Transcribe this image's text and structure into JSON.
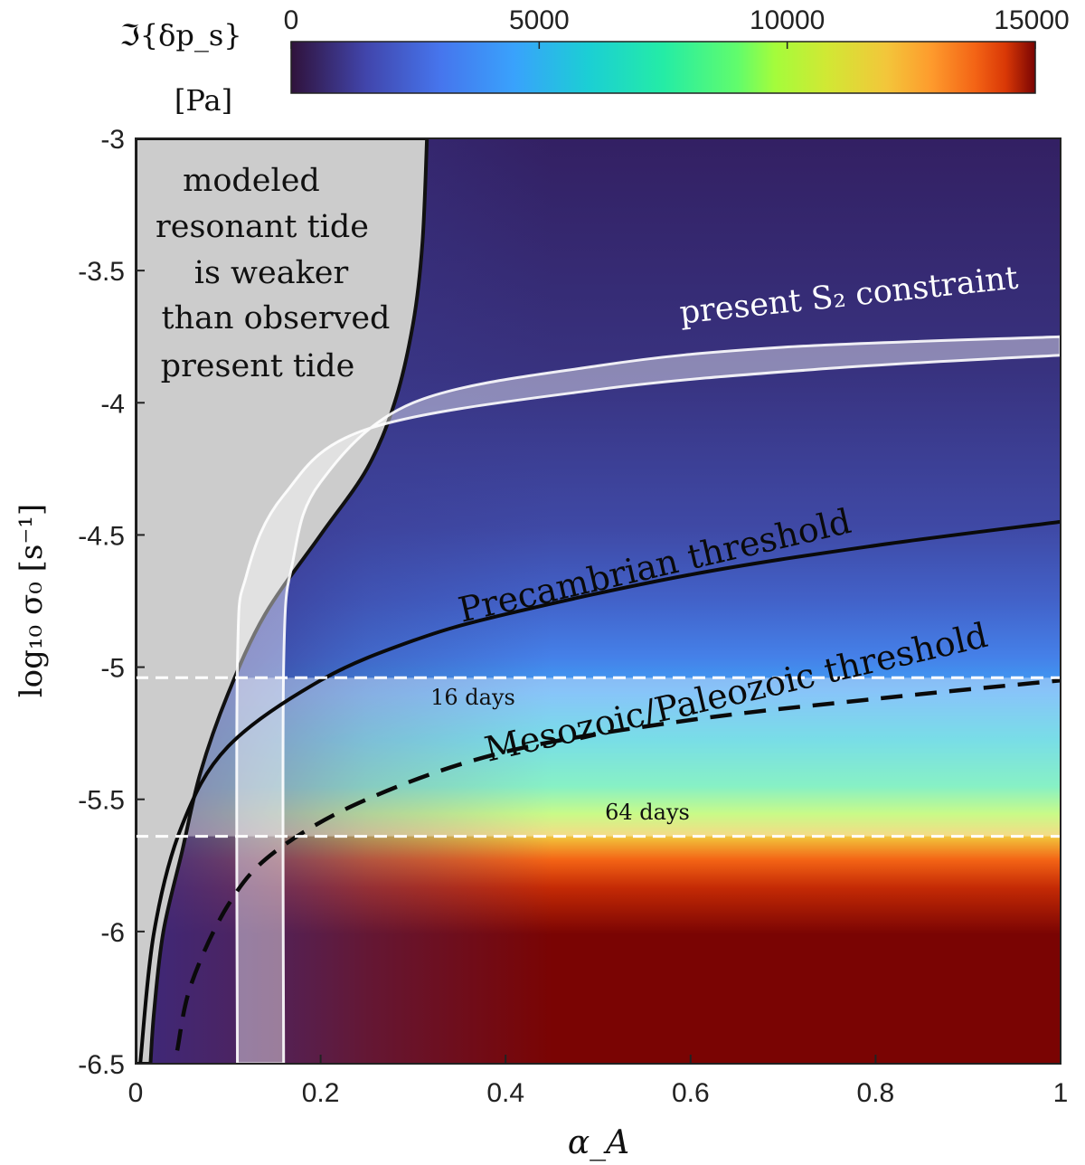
{
  "chart_data": {
    "type": "heatmap",
    "title": "",
    "xlabel": "α_A",
    "ylabel": "log₁₀ σ₀  [s⁻¹]",
    "xlim": [
      0,
      1
    ],
    "ylim": [
      -6.5,
      -3
    ],
    "x_ticks": [
      {
        "value": 0,
        "label": "0"
      },
      {
        "value": 0.2,
        "label": "0.2"
      },
      {
        "value": 0.4,
        "label": "0.4"
      },
      {
        "value": 0.6,
        "label": "0.6"
      },
      {
        "value": 0.8,
        "label": "0.8"
      },
      {
        "value": 1,
        "label": "1"
      }
    ],
    "y_ticks": [
      {
        "value": -3,
        "label": "-3"
      },
      {
        "value": -3.5,
        "label": "-3.5"
      },
      {
        "value": -4,
        "label": "-4"
      },
      {
        "value": -4.5,
        "label": "-4.5"
      },
      {
        "value": -5,
        "label": "-5"
      },
      {
        "value": -5.5,
        "label": "-5.5"
      },
      {
        "value": -6,
        "label": "-6"
      },
      {
        "value": -6.5,
        "label": "-6.5"
      }
    ],
    "colorbar": {
      "label_line1": "ℑ{δp_s}",
      "label_line2": "[Pa]",
      "range": [
        0,
        15000
      ],
      "colormap": "turbo",
      "ticks": [
        {
          "value": 0,
          "label": "0"
        },
        {
          "value": 5000,
          "label": "5000"
        },
        {
          "value": 10000,
          "label": "10000"
        },
        {
          "value": 15000,
          "label": "15000"
        }
      ]
    },
    "grey_region": {
      "label_lines": [
        "modeled",
        "resonant tide",
        "is weaker",
        "than observed",
        "present tide"
      ],
      "boundary": [
        [
          0.016,
          -6.5
        ],
        [
          0.02,
          -6.3
        ],
        [
          0.03,
          -6.0
        ],
        [
          0.05,
          -5.7
        ],
        [
          0.07,
          -5.4
        ],
        [
          0.1,
          -5.1
        ],
        [
          0.14,
          -4.8
        ],
        [
          0.2,
          -4.5
        ],
        [
          0.25,
          -4.25
        ],
        [
          0.28,
          -4.0
        ],
        [
          0.3,
          -3.7
        ],
        [
          0.31,
          -3.4
        ],
        [
          0.315,
          -3.0
        ]
      ]
    },
    "present_s2_constraint": {
      "label": "present S₂ constraint",
      "upper_edge": [
        [
          0.16,
          -6.5
        ],
        [
          0.16,
          -5.0
        ],
        [
          0.17,
          -4.6
        ],
        [
          0.2,
          -4.3
        ],
        [
          0.3,
          -4.0
        ],
        [
          0.5,
          -3.86
        ],
        [
          0.7,
          -3.79
        ],
        [
          1.0,
          -3.75
        ]
      ],
      "lower_edge": [
        [
          0.11,
          -6.5
        ],
        [
          0.11,
          -5.0
        ],
        [
          0.12,
          -4.65
        ],
        [
          0.16,
          -4.35
        ],
        [
          0.25,
          -4.1
        ],
        [
          0.5,
          -3.95
        ],
        [
          0.75,
          -3.87
        ],
        [
          1.0,
          -3.82
        ]
      ]
    },
    "band_16_64_days": {
      "y_range": [
        -5.64,
        -5.04
      ]
    },
    "reference_lines": [
      {
        "label": "16 days",
        "y": -5.04,
        "style": "dashed-white"
      },
      {
        "label": "64 days",
        "y": -5.64,
        "style": "dashed-white"
      }
    ],
    "threshold_curves": [
      {
        "label": "Precambrian threshold",
        "style": "solid-black",
        "points": [
          [
            0.005,
            -6.5
          ],
          [
            0.02,
            -6.0
          ],
          [
            0.05,
            -5.6
          ],
          [
            0.1,
            -5.3
          ],
          [
            0.2,
            -5.05
          ],
          [
            0.3,
            -4.9
          ],
          [
            0.4,
            -4.8
          ],
          [
            0.6,
            -4.65
          ],
          [
            0.8,
            -4.54
          ],
          [
            1.0,
            -4.45
          ]
        ]
      },
      {
        "label": "Mesozoic/Paleozoic threshold",
        "style": "dashed-black",
        "points": [
          [
            0.045,
            -6.45
          ],
          [
            0.06,
            -6.2
          ],
          [
            0.1,
            -5.9
          ],
          [
            0.15,
            -5.7
          ],
          [
            0.25,
            -5.5
          ],
          [
            0.4,
            -5.32
          ],
          [
            0.6,
            -5.2
          ],
          [
            0.8,
            -5.12
          ],
          [
            1.0,
            -5.05
          ]
        ]
      }
    ]
  }
}
